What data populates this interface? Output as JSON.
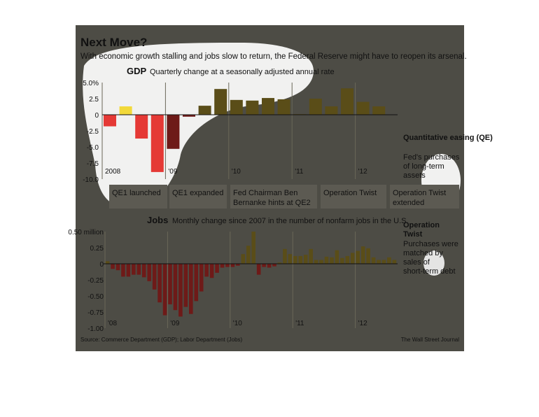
{
  "header": {
    "title": "Next Move?",
    "subtitle": "With economic growth stalling and jobs slow to return, the Federal Reserve might have to reopen its arsenal."
  },
  "colors": {
    "background": "#4d4c45",
    "highlight": "#ffffff",
    "gdp_negative": "#e53935",
    "gdp_positive": "#f2d93a",
    "gdp_negative_shaded": "#6e1a18",
    "gdp_positive_shaded": "#5a4d18",
    "jobs_negative": "#6e1a18",
    "jobs_positive": "#5a4d18",
    "callout_box": "#5c5a52",
    "text": "#111111"
  },
  "chart_data": [
    {
      "type": "bar",
      "title": "GDP",
      "subtitle": "Quarterly change at a seasonally adjusted annual rate",
      "x": [
        "2008 Q1",
        "2008 Q2",
        "2008 Q3",
        "2008 Q4",
        "2009 Q1",
        "2009 Q2",
        "2009 Q3",
        "2009 Q4",
        "2010 Q1",
        "2010 Q2",
        "2010 Q3",
        "2010 Q4",
        "2011 Q1",
        "2011 Q2",
        "2011 Q3",
        "2011 Q4",
        "2012 Q1",
        "2012 Q2",
        "2012 Q3"
      ],
      "values": [
        -1.8,
        1.3,
        -3.7,
        -8.9,
        -5.3,
        -0.3,
        1.4,
        4.0,
        2.3,
        2.2,
        2.6,
        2.4,
        0.1,
        2.5,
        1.3,
        4.1,
        2.0,
        1.3,
        0.0
      ],
      "ylim": [
        -10.0,
        5.0
      ],
      "yticks": [
        "5.0%",
        "2.5",
        "0",
        "-2.5",
        "-5.0",
        "-7.5",
        "-10.0"
      ],
      "xtick_labels": [
        "2008",
        "'09",
        "'10",
        "'11",
        "'12"
      ],
      "grid": false,
      "shaded_period": "from 2009 Q1"
    },
    {
      "type": "bar",
      "title": "Jobs",
      "subtitle": "Monthly change since 2007 in the number of nonfarm jobs in the U.S.",
      "values": [
        0.04,
        -0.08,
        -0.1,
        -0.2,
        -0.2,
        -0.17,
        -0.17,
        -0.21,
        -0.27,
        -0.4,
        -0.6,
        -0.8,
        -0.63,
        -0.72,
        -0.82,
        -0.67,
        -0.78,
        -0.58,
        -0.43,
        -0.2,
        -0.22,
        -0.14,
        -0.06,
        -0.05,
        -0.05,
        -0.03,
        0.15,
        0.28,
        0.5,
        -0.17,
        -0.05,
        -0.06,
        -0.04,
        0.02,
        0.23,
        0.15,
        0.12,
        0.12,
        0.14,
        0.23,
        0.06,
        0.06,
        0.11,
        0.1,
        0.21,
        0.09,
        0.12,
        0.17,
        0.2,
        0.27,
        0.24,
        0.1,
        0.06,
        0.06,
        0.1,
        0.06
      ],
      "ylim": [
        -1.0,
        0.5
      ],
      "yticks": [
        "0.50 million",
        "0.25",
        "0",
        "-0.25",
        "-0.50",
        "-0.75",
        "-1.00"
      ],
      "xtick_labels": [
        "'08",
        "'09",
        "'10",
        "'11",
        "'12"
      ],
      "grid": false
    }
  ],
  "callouts": {
    "qe": {
      "title": "Quantitative easing (QE)",
      "line1": "Fed's purchases",
      "line2": "of long-term",
      "line3": "assets"
    },
    "twist": {
      "title1": "Operation",
      "title2": "Twist",
      "line1": "Purchases were",
      "line2": "matched by",
      "line3": "sales of",
      "line4": "short-term debt"
    }
  },
  "events": [
    {
      "line1": "QE1 launched",
      "line2": ""
    },
    {
      "line1": "QE1 expanded",
      "line2": ""
    },
    {
      "line1": "Fed Chairman Ben",
      "line2": "Bernanke hints at QE2"
    },
    {
      "line1": "Operation Twist",
      "line2": ""
    },
    {
      "line1": "Operation Twist",
      "line2": "extended"
    }
  ],
  "footer": {
    "source": "Source: Commerce Department (GDP); Labor Department (Jobs)",
    "credit": "The Wall Street Journal"
  }
}
